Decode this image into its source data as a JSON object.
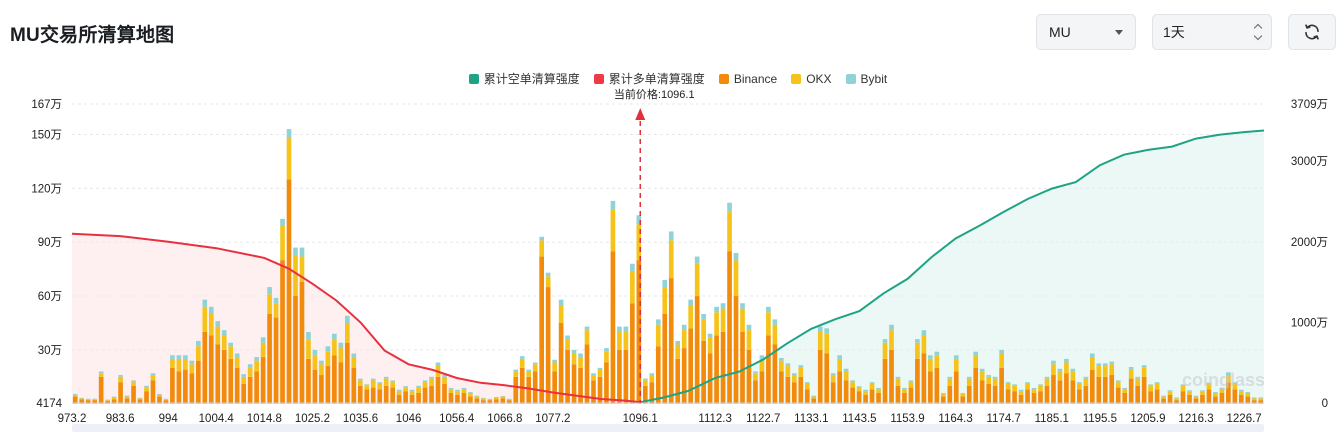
{
  "page": {
    "title": "MU交易所清算地图"
  },
  "controls": {
    "symbol": "MU",
    "period": "1天",
    "refresh_icon": "refresh-icon"
  },
  "legend": [
    {
      "label": "累计空单清算强度",
      "color": "#1fa385"
    },
    {
      "label": "累计多单清算强度",
      "color": "#ee3a48"
    },
    {
      "label": "Binance",
      "color": "#f28a0c"
    },
    {
      "label": "OKX",
      "color": "#f5c31a"
    },
    {
      "label": "Bybit",
      "color": "#8fd3d6"
    }
  ],
  "watermark": "coinglass",
  "chart_data": {
    "type": "bar",
    "title": "",
    "current_price_label": "当前价格:1096.1",
    "current_price": 1096.1,
    "x_range": [
      973.2,
      1231.0
    ],
    "x_ticks": [
      "973.2",
      "983.6",
      "994",
      "1004.4",
      "1014.8",
      "1025.2",
      "1035.6",
      "1046",
      "1056.4",
      "1066.8",
      "1077.2",
      "1096.1",
      "1112.3",
      "1122.7",
      "1133.1",
      "1143.5",
      "1153.9",
      "1164.3",
      "1174.7",
      "1185.1",
      "1195.5",
      "1205.9",
      "1216.3",
      "1226.7"
    ],
    "y_left": {
      "ticks": [
        "4174",
        "30万",
        "60万",
        "90万",
        "120万",
        "150万",
        "167万"
      ],
      "min": 4174,
      "max": 1670000
    },
    "y_right": {
      "ticks": [
        "0",
        "1000万",
        "2000万",
        "3000万",
        "3709万"
      ],
      "min": 0,
      "max": 37090000
    },
    "series": [
      {
        "name": "Binance",
        "color": "#f28a0c",
        "values": [
          40000,
          25000,
          20000,
          20000,
          150000,
          15000,
          25000,
          120000,
          30000,
          100000,
          25000,
          70000,
          130000,
          40000,
          20000,
          200000,
          180000,
          190000,
          170000,
          240000,
          400000,
          380000,
          330000,
          300000,
          250000,
          200000,
          110000,
          150000,
          180000,
          260000,
          500000,
          480000,
          800000,
          1250000,
          600000,
          680000,
          250000,
          190000,
          160000,
          210000,
          270000,
          230000,
          340000,
          200000,
          100000,
          80000,
          90000,
          80000,
          100000,
          90000,
          50000,
          70000,
          50000,
          60000,
          90000,
          100000,
          150000,
          110000,
          60000,
          50000,
          60000,
          40000,
          30000,
          20000,
          20000,
          25000,
          30000,
          20000,
          150000,
          200000,
          150000,
          180000,
          820000,
          650000,
          180000,
          450000,
          300000,
          220000,
          200000,
          330000,
          130000,
          150000,
          230000,
          850000,
          300000,
          300000,
          560000,
          800000,
          100000,
          120000,
          320000,
          500000,
          700000,
          250000,
          310000,
          420000,
          600000,
          350000,
          280000,
          380000,
          400000,
          850000,
          600000,
          400000,
          300000,
          130000,
          180000,
          380000,
          330000,
          180000,
          150000,
          120000,
          150000,
          80000,
          30000,
          300000,
          280000,
          120000,
          180000,
          130000,
          90000,
          70000,
          50000,
          80000,
          60000,
          250000,
          300000,
          100000,
          60000,
          90000,
          250000,
          280000,
          180000,
          200000,
          40000,
          100000,
          180000,
          40000,
          100000,
          200000,
          130000,
          110000,
          100000,
          200000,
          80000,
          70000,
          50000,
          80000,
          60000,
          70000,
          100000,
          160000,
          130000,
          170000,
          130000,
          80000,
          100000,
          190000,
          150000,
          150000,
          160000,
          90000,
          60000,
          140000,
          100000,
          150000,
          70000,
          80000,
          30000,
          50000,
          20000,
          70000,
          50000,
          30000,
          50000,
          80000,
          40000,
          60000,
          120000,
          80000,
          50000,
          40000,
          20000,
          20000
        ]
      },
      {
        "name": "OKX",
        "color": "#f5c31a",
        "values": [
          10000,
          5000,
          5000,
          5000,
          20000,
          5000,
          10000,
          30000,
          10000,
          20000,
          5000,
          20000,
          30000,
          10000,
          5000,
          50000,
          70000,
          60000,
          50000,
          80000,
          140000,
          120000,
          100000,
          80000,
          70000,
          60000,
          40000,
          50000,
          60000,
          80000,
          110000,
          80000,
          190000,
          230000,
          230000,
          140000,
          110000,
          80000,
          60000,
          80000,
          90000,
          80000,
          110000,
          60000,
          30000,
          20000,
          40000,
          30000,
          40000,
          30000,
          20000,
          20000,
          20000,
          30000,
          30000,
          40000,
          60000,
          40000,
          20000,
          20000,
          20000,
          20000,
          10000,
          10000,
          5000,
          10000,
          10000,
          5000,
          30000,
          50000,
          30000,
          40000,
          90000,
          60000,
          50000,
          100000,
          60000,
          60000,
          60000,
          80000,
          30000,
          40000,
          60000,
          230000,
          100000,
          100000,
          180000,
          200000,
          30000,
          40000,
          120000,
          150000,
          210000,
          80000,
          100000,
          130000,
          180000,
          120000,
          90000,
          130000,
          130000,
          220000,
          200000,
          130000,
          110000,
          40000,
          70000,
          130000,
          110000,
          60000,
          60000,
          40000,
          50000,
          30000,
          10000,
          100000,
          110000,
          40000,
          70000,
          50000,
          30000,
          20000,
          20000,
          30000,
          20000,
          90000,
          110000,
          40000,
          20000,
          30000,
          90000,
          100000,
          70000,
          70000,
          15000,
          40000,
          70000,
          15000,
          40000,
          70000,
          50000,
          40000,
          40000,
          80000,
          30000,
          30000,
          20000,
          30000,
          20000,
          30000,
          40000,
          60000,
          50000,
          60000,
          50000,
          30000,
          40000,
          70000,
          60000,
          60000,
          60000,
          30000,
          20000,
          50000,
          40000,
          50000,
          30000,
          30000,
          10000,
          20000,
          10000,
          30000,
          20000,
          10000,
          20000,
          30000,
          20000,
          20000,
          40000,
          30000,
          20000,
          20000,
          10000,
          10000
        ]
      },
      {
        "name": "Bybit",
        "color": "#8fd3d6",
        "values": [
          5000,
          3000,
          3000,
          3000,
          10000,
          3000,
          5000,
          10000,
          5000,
          10000,
          3000,
          10000,
          10000,
          5000,
          3000,
          20000,
          20000,
          20000,
          20000,
          30000,
          40000,
          40000,
          30000,
          30000,
          20000,
          20000,
          15000,
          20000,
          20000,
          30000,
          40000,
          30000,
          40000,
          50000,
          40000,
          50000,
          40000,
          30000,
          20000,
          30000,
          30000,
          30000,
          40000,
          20000,
          10000,
          8000,
          10000,
          10000,
          10000,
          10000,
          8000,
          8000,
          8000,
          10000,
          10000,
          10000,
          20000,
          10000,
          8000,
          8000,
          8000,
          5000,
          5000,
          3000,
          3000,
          3000,
          3000,
          3000,
          10000,
          15000,
          10000,
          10000,
          20000,
          20000,
          15000,
          30000,
          20000,
          20000,
          20000,
          20000,
          10000,
          10000,
          20000,
          50000,
          30000,
          30000,
          40000,
          50000,
          10000,
          10000,
          30000,
          40000,
          50000,
          20000,
          30000,
          30000,
          40000,
          30000,
          20000,
          30000,
          30000,
          50000,
          40000,
          30000,
          30000,
          10000,
          20000,
          30000,
          30000,
          15000,
          15000,
          10000,
          15000,
          10000,
          5000,
          30000,
          30000,
          10000,
          20000,
          15000,
          10000,
          8000,
          8000,
          10000,
          8000,
          20000,
          30000,
          10000,
          8000,
          10000,
          20000,
          30000,
          20000,
          20000,
          5000,
          10000,
          20000,
          5000,
          10000,
          20000,
          15000,
          10000,
          10000,
          20000,
          10000,
          8000,
          8000,
          10000,
          8000,
          8000,
          10000,
          20000,
          15000,
          20000,
          15000,
          10000,
          10000,
          20000,
          15000,
          15000,
          15000,
          10000,
          8000,
          15000,
          10000,
          15000,
          8000,
          10000,
          5000,
          5000,
          5000,
          8000,
          5000,
          5000,
          5000,
          8000,
          5000,
          8000,
          15000,
          10000,
          8000,
          5000,
          5000,
          5000
        ]
      }
    ],
    "long_liquidation_curve": {
      "name": "累计多单清算强度",
      "color": "#e8313f",
      "x": [
        973.2,
        983.6,
        994,
        1004.4,
        1014.8,
        1020,
        1025.2,
        1030.4,
        1035.6,
        1040.8,
        1046,
        1051.2,
        1056.4,
        1061.6,
        1066.8,
        1072,
        1077.2,
        1082.4,
        1087.6,
        1092.8,
        1096.1
      ],
      "y": [
        21000000,
        20700000,
        20000000,
        19200000,
        18000000,
        16700000,
        14800000,
        12700000,
        10000000,
        6500000,
        4800000,
        4100000,
        3100000,
        2500000,
        2200000,
        1800000,
        1300000,
        900000,
        500000,
        300000,
        100000
      ]
    },
    "short_liquidation_curve": {
      "name": "累计空单清算强度",
      "color": "#1fa385",
      "x": [
        1096.1,
        1101.3,
        1106.5,
        1112.3,
        1117.5,
        1122.7,
        1127.9,
        1133.1,
        1138.3,
        1143.5,
        1148.7,
        1153.9,
        1159.1,
        1164.3,
        1169.5,
        1174.7,
        1179.9,
        1185.1,
        1190.3,
        1195.5,
        1200.7,
        1205.9,
        1211.1,
        1216.3,
        1221.5,
        1226.7,
        1231
      ],
      "y": [
        100000,
        700000,
        1500000,
        3100000,
        3900000,
        5400000,
        7400000,
        9200000,
        10400000,
        11400000,
        13600000,
        15400000,
        18100000,
        20400000,
        22000000,
        23700000,
        25300000,
        26600000,
        27400000,
        29500000,
        30800000,
        31400000,
        31800000,
        32800000,
        33300000,
        33600000,
        33800000
      ]
    },
    "grid": true,
    "legend_position": "top"
  }
}
